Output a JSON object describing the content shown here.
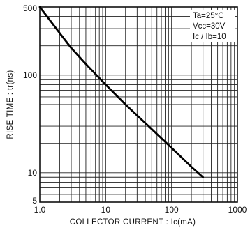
{
  "chart_data": {
    "type": "line",
    "xlabel": "COLLECTOR  CURRENT : Ic(mA)",
    "ylabel": "RISE  TIME : tr(ns)",
    "xscale": "log",
    "yscale": "log",
    "xlim": [
      1,
      1000
    ],
    "ylim": [
      5,
      500
    ],
    "grid": true,
    "x_ticks": [
      "1.0",
      "10",
      "100",
      "1000"
    ],
    "y_ticks": [
      "5",
      "10",
      "100",
      "500"
    ],
    "annotations": [
      "Ta=25°C",
      "Vcc=30V",
      "Ic / Ib=10"
    ],
    "annotation_placement": "top-right",
    "series": [
      {
        "x": [
          1,
          2,
          3,
          5,
          10,
          20,
          50,
          100,
          200,
          300
        ],
        "y": [
          500,
          270,
          190,
          130,
          80,
          50,
          28,
          18,
          11.5,
          9
        ]
      }
    ]
  }
}
